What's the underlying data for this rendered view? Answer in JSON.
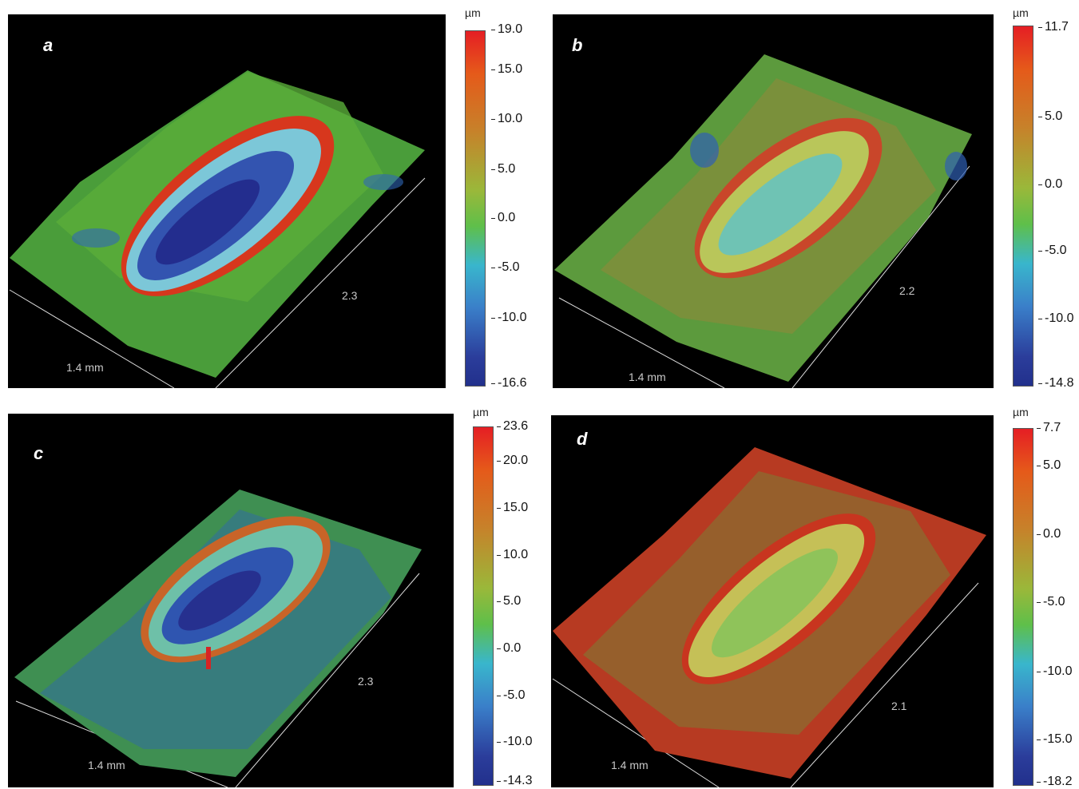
{
  "panels": [
    {
      "letter": "a",
      "width_label": "1.4 mm",
      "length_label": "2.3",
      "unit": "µm",
      "ticks": [
        "19.0",
        "15.0",
        "10.0",
        "5.0",
        "0.0",
        "-5.0",
        "-10.0",
        "-16.6"
      ]
    },
    {
      "letter": "b",
      "width_label": "1.4 mm",
      "length_label": "2.2",
      "unit": "µm",
      "ticks": [
        "11.7",
        "5.0",
        "0.0",
        "-5.0",
        "-10.0",
        "-14.8"
      ]
    },
    {
      "letter": "c",
      "width_label": "1.4 mm",
      "length_label": "2.3",
      "unit": "µm",
      "ticks": [
        "23.6",
        "20.0",
        "15.0",
        "10.0",
        "5.0",
        "0.0",
        "-5.0",
        "-10.0",
        "-14.3"
      ]
    },
    {
      "letter": "d",
      "width_label": "1.4 mm",
      "length_label": "2.1",
      "unit": "µm",
      "ticks": [
        "7.7",
        "5.0",
        "0.0",
        "-5.0",
        "-10.0",
        "-15.0",
        "-18.2"
      ]
    }
  ],
  "colors": {
    "background": "#000000",
    "high": "#e51e24",
    "mid": "#5fbf4a",
    "low": "#22308c"
  }
}
